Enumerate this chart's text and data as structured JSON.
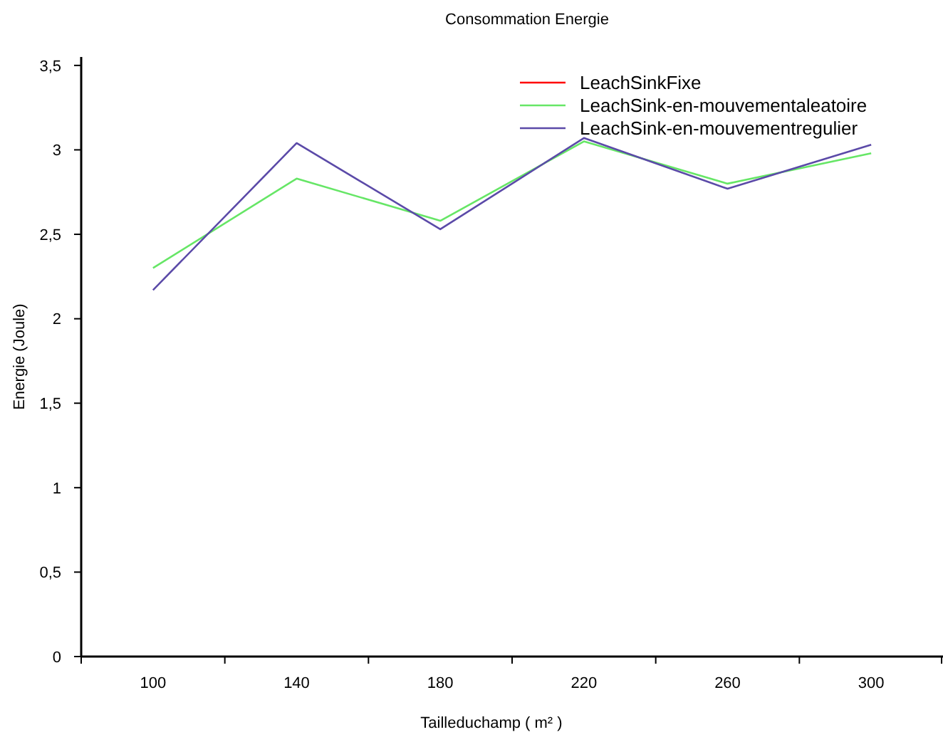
{
  "chart_data": {
    "type": "line",
    "title": "Consommation Energie",
    "xlabel": "Tailleduchamp ( m² )",
    "ylabel": "Energie (Joule)",
    "categories": [
      "100",
      "140",
      "180",
      "220",
      "260",
      "300"
    ],
    "series": [
      {
        "name": "LeachSinkFixe",
        "color": "#ff0000",
        "values": [
          null,
          null,
          null,
          null,
          null,
          null
        ]
      },
      {
        "name": "LeachSink-en-mouvementaleatoire",
        "color": "#66e666",
        "values": [
          2.3,
          2.83,
          2.58,
          3.05,
          2.8,
          2.98
        ]
      },
      {
        "name": "LeachSink-en-mouvementregulier",
        "color": "#5b4aa8",
        "values": [
          2.17,
          3.04,
          2.53,
          3.07,
          2.77,
          3.03
        ]
      }
    ],
    "ylim": [
      0,
      3.55
    ],
    "yticks": [
      0,
      {
        "value": 0.5,
        "label": "0,5"
      },
      1,
      {
        "value": 1.5,
        "label": "1,5"
      },
      2,
      {
        "value": 2.5,
        "label": "2,5"
      },
      3,
      {
        "value": 3.5,
        "label": "3,5"
      }
    ],
    "grid": false,
    "legend": "top right",
    "line_style": "solid"
  }
}
